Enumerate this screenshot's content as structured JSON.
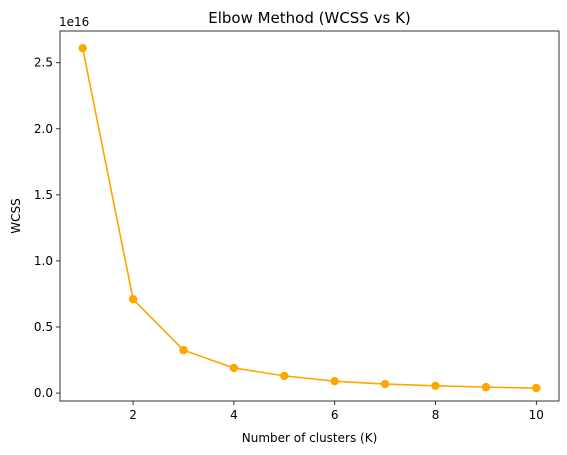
{
  "chart_data": {
    "type": "line",
    "title": "Elbow Method (WCSS vs K)",
    "xlabel": "Number of clusters (K)",
    "ylabel": "WCSS",
    "y_offset_label": "1e16",
    "y_scale_factor": 1e+16,
    "x": [
      1,
      2,
      3,
      4,
      5,
      6,
      7,
      8,
      9,
      10
    ],
    "series": [
      {
        "values": [
          2.61e+16,
          7100000000000000.0,
          3250000000000000.0,
          1900000000000000.0,
          1300000000000000.0,
          900000000000000.0,
          680000000000000.0,
          550000000000000.0,
          450000000000000.0,
          380000000000000.0
        ],
        "color": "#ffa500",
        "marker": "circle"
      }
    ],
    "xlim": [
      0.55,
      10.45
    ],
    "ylim": [
      -600000000000000.0,
      2.74e+16
    ],
    "x_ticks": [
      2,
      4,
      6,
      8,
      10
    ],
    "x_tick_labels": [
      "2",
      "4",
      "6",
      "8",
      "10"
    ],
    "y_ticks": [
      0,
      5000000000000000.0,
      1e+16,
      1.5e+16,
      2e+16,
      2.5e+16
    ],
    "y_tick_labels": [
      "0.0",
      "0.5",
      "1.0",
      "1.5",
      "2.0",
      "2.5"
    ],
    "grid": false,
    "legend": "none"
  }
}
